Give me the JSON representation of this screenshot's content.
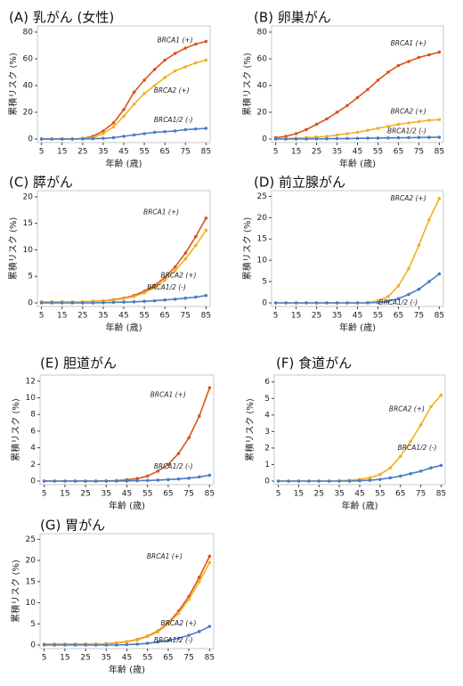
{
  "chart_data": [
    {
      "type": "line",
      "title": "(A) 乳がん (女性)",
      "xlabel": "年齢 (歳)",
      "ylabel": "累積リスク (%)",
      "x": [
        5,
        10,
        15,
        20,
        25,
        30,
        35,
        40,
        45,
        50,
        55,
        60,
        65,
        70,
        75,
        80,
        85
      ],
      "xlim": [
        3,
        87
      ],
      "xticks": [
        5,
        15,
        25,
        35,
        45,
        55,
        65,
        75,
        85
      ],
      "ylim": [
        0,
        82
      ],
      "yticks": [
        0,
        20,
        40,
        60,
        80
      ],
      "series": [
        {
          "name": "BRCA1 (+)",
          "color": "#d9541e",
          "values": [
            0,
            0,
            0,
            0,
            0.5,
            2,
            6,
            12,
            22,
            35,
            44,
            52,
            59,
            64,
            68,
            71,
            73
          ]
        },
        {
          "name": "BRCA2 (+)",
          "color": "#f2b01e",
          "values": [
            0,
            0,
            0,
            0,
            0.3,
            1,
            4,
            9,
            17,
            26,
            34,
            40,
            46,
            51,
            54,
            57,
            59
          ]
        },
        {
          "name": "BRCA1/2 (-)",
          "color": "#4a7dc4",
          "values": [
            0,
            0,
            0,
            0,
            0,
            0.2,
            0.5,
            1,
            2,
            3,
            4,
            5,
            5.5,
            6,
            7,
            7.5,
            8
          ]
        }
      ]
    },
    {
      "type": "line",
      "title": "(B) 卵巣がん",
      "xlabel": "年齢 (歳)",
      "ylabel": "累積リスク (%)",
      "x": [
        5,
        10,
        15,
        20,
        25,
        30,
        35,
        40,
        45,
        50,
        55,
        60,
        65,
        70,
        75,
        80,
        85
      ],
      "xlim": [
        3,
        87
      ],
      "xticks": [
        5,
        15,
        25,
        35,
        45,
        55,
        65,
        75,
        85
      ],
      "ylim": [
        0,
        82
      ],
      "yticks": [
        0,
        20,
        40,
        60,
        80
      ],
      "series": [
        {
          "name": "BRCA1 (+)",
          "color": "#d9541e",
          "values": [
            1,
            2,
            4,
            7,
            11,
            15,
            20,
            25,
            31,
            37,
            44,
            50,
            55,
            58,
            61,
            63,
            65
          ]
        },
        {
          "name": "BRCA2 (+)",
          "color": "#f2b01e",
          "values": [
            0,
            0.3,
            0.6,
            1,
            1.5,
            2,
            3,
            4,
            5,
            6.5,
            8,
            9.5,
            11,
            12,
            13,
            14,
            14.5
          ]
        },
        {
          "name": "BRCA1/2 (-)",
          "color": "#4a7dc4",
          "values": [
            0,
            0,
            0,
            0,
            0.1,
            0.2,
            0.3,
            0.4,
            0.5,
            0.6,
            0.7,
            0.8,
            0.9,
            1,
            1.1,
            1.2,
            1.3
          ]
        }
      ]
    },
    {
      "type": "line",
      "title": "(C) 膵がん",
      "xlabel": "年齢 (歳)",
      "ylabel": "累積リスク (%)",
      "x": [
        5,
        10,
        15,
        20,
        25,
        30,
        35,
        40,
        45,
        50,
        55,
        60,
        65,
        70,
        75,
        80,
        85
      ],
      "xlim": [
        3,
        87
      ],
      "xticks": [
        5,
        15,
        25,
        35,
        45,
        55,
        65,
        75,
        85
      ],
      "ylim": [
        0,
        20.5
      ],
      "yticks": [
        0,
        5,
        10,
        15,
        20
      ],
      "series": [
        {
          "name": "BRCA1 (+)",
          "color": "#d9541e",
          "values": [
            0.2,
            0.2,
            0.2,
            0.2,
            0.2,
            0.3,
            0.4,
            0.6,
            0.9,
            1.4,
            2.2,
            3.3,
            4.8,
            6.8,
            9.4,
            12.5,
            16
          ]
        },
        {
          "name": "BRCA2 (+)",
          "color": "#f2b01e",
          "values": [
            0.2,
            0.2,
            0.2,
            0.2,
            0.2,
            0.3,
            0.4,
            0.5,
            0.8,
            1.2,
            1.9,
            2.9,
            4.3,
            6.1,
            8.3,
            10.8,
            13.7
          ]
        },
        {
          "name": "BRCA1/2 (-)",
          "color": "#4a7dc4",
          "values": [
            0,
            0,
            0,
            0,
            0,
            0,
            0.05,
            0.1,
            0.15,
            0.2,
            0.3,
            0.4,
            0.55,
            0.7,
            0.9,
            1.1,
            1.4
          ]
        }
      ]
    },
    {
      "type": "line",
      "title": "(D) 前立腺がん",
      "xlabel": "年齢 (歳)",
      "ylabel": "累積リスク (%)",
      "x": [
        5,
        10,
        15,
        20,
        25,
        30,
        35,
        40,
        45,
        50,
        55,
        60,
        65,
        70,
        75,
        80,
        85
      ],
      "xlim": [
        3,
        87
      ],
      "xticks": [
        5,
        15,
        25,
        35,
        45,
        55,
        65,
        75,
        85
      ],
      "ylim": [
        0,
        25.5
      ],
      "yticks": [
        0,
        5,
        10,
        15,
        20,
        25
      ],
      "series": [
        {
          "name": "BRCA2 (+)",
          "color": "#f2b01e",
          "values": [
            0,
            0,
            0,
            0,
            0,
            0,
            0,
            0,
            0,
            0.1,
            0.5,
            1.5,
            4,
            8,
            13.5,
            19.5,
            24.5
          ]
        },
        {
          "name": "BRCA1/2 (-)",
          "color": "#4a7dc4",
          "values": [
            0,
            0,
            0,
            0,
            0,
            0,
            0,
            0,
            0,
            0,
            0.1,
            0.4,
            1,
            2,
            3.2,
            5,
            6.8
          ]
        }
      ]
    },
    {
      "type": "line",
      "title": "(E) 胆道がん",
      "xlabel": "年齢 (歳)",
      "ylabel": "累積リスク (%)",
      "x": [
        5,
        10,
        15,
        20,
        25,
        30,
        35,
        40,
        45,
        50,
        55,
        60,
        65,
        70,
        75,
        80,
        85
      ],
      "xlim": [
        3,
        87
      ],
      "xticks": [
        5,
        15,
        25,
        35,
        45,
        55,
        65,
        75,
        85
      ],
      "ylim": [
        0,
        12.3
      ],
      "yticks": [
        0,
        2,
        4,
        6,
        8,
        10,
        12
      ],
      "series": [
        {
          "name": "BRCA1 (+)",
          "color": "#d9541e",
          "values": [
            0,
            0,
            0,
            0,
            0,
            0,
            0.02,
            0.05,
            0.15,
            0.3,
            0.6,
            1.2,
            2,
            3.3,
            5.2,
            7.8,
            11.2
          ]
        },
        {
          "name": "BRCA1/2 (-)",
          "color": "#4a7dc4",
          "values": [
            0,
            0,
            0,
            0,
            0,
            0,
            0,
            0,
            0.02,
            0.05,
            0.08,
            0.12,
            0.18,
            0.25,
            0.35,
            0.5,
            0.7
          ]
        }
      ]
    },
    {
      "type": "line",
      "title": "(F) 食道がん",
      "xlabel": "年齢 (歳)",
      "ylabel": "累積リスク (%)",
      "x": [
        5,
        10,
        15,
        20,
        25,
        30,
        35,
        40,
        45,
        50,
        55,
        60,
        65,
        70,
        75,
        80,
        85
      ],
      "xlim": [
        3,
        87
      ],
      "xticks": [
        5,
        15,
        25,
        35,
        45,
        55,
        65,
        75,
        85
      ],
      "ylim": [
        0,
        6.2
      ],
      "yticks": [
        0,
        1,
        2,
        3,
        4,
        5,
        6
      ],
      "series": [
        {
          "name": "BRCA2 (+)",
          "color": "#f2b01e",
          "values": [
            0,
            0,
            0,
            0,
            0,
            0,
            0.02,
            0.05,
            0.1,
            0.2,
            0.4,
            0.8,
            1.5,
            2.4,
            3.4,
            4.5,
            5.2
          ]
        },
        {
          "name": "BRCA1/2 (-)",
          "color": "#4a7dc4",
          "values": [
            0,
            0,
            0,
            0,
            0,
            0,
            0,
            0,
            0.02,
            0.05,
            0.1,
            0.2,
            0.3,
            0.45,
            0.6,
            0.8,
            0.95
          ]
        }
      ]
    },
    {
      "type": "line",
      "title": "(G) 胃がん",
      "xlabel": "年齢 (歳)",
      "ylabel": "累積リスク (%)",
      "x": [
        5,
        10,
        15,
        20,
        25,
        30,
        35,
        40,
        45,
        50,
        55,
        60,
        65,
        70,
        75,
        80,
        85
      ],
      "xlim": [
        3,
        87
      ],
      "xticks": [
        5,
        15,
        25,
        35,
        45,
        55,
        65,
        75,
        85
      ],
      "ylim": [
        0,
        25.5
      ],
      "yticks": [
        0,
        5,
        10,
        15,
        20,
        25
      ],
      "series": [
        {
          "name": "BRCA1 (+)",
          "color": "#d9541e",
          "values": [
            0.2,
            0.2,
            0.2,
            0.2,
            0.2,
            0.2,
            0.3,
            0.5,
            0.8,
            1.3,
            2.1,
            3.3,
            5.2,
            8,
            11.5,
            16,
            21
          ]
        },
        {
          "name": "BRCA2 (+)",
          "color": "#f2b01e",
          "values": [
            0.2,
            0.2,
            0.2,
            0.2,
            0.2,
            0.2,
            0.3,
            0.5,
            0.8,
            1.2,
            2,
            3.1,
            5,
            7.5,
            10.8,
            15,
            19.5
          ]
        },
        {
          "name": "BRCA1/2 (-)",
          "color": "#4a7dc4",
          "values": [
            0,
            0,
            0,
            0,
            0,
            0,
            0,
            0,
            0.1,
            0.2,
            0.4,
            0.7,
            1.1,
            1.6,
            2.3,
            3.2,
            4.4
          ]
        }
      ]
    }
  ]
}
